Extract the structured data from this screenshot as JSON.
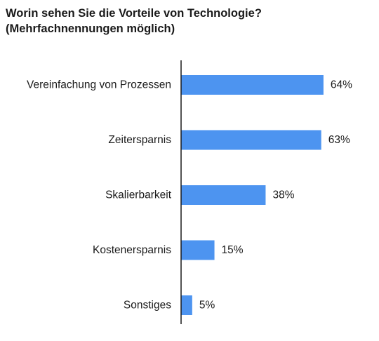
{
  "chart_data": {
    "type": "bar",
    "orientation": "horizontal",
    "title": "Worin sehen Sie die Vorteile von Technologie?",
    "subtitle": "(Mehrfachnennungen möglich)",
    "categories": [
      "Vereinfachung von Prozessen",
      "Zeitersparnis",
      "Skalierbarkeit",
      "Kostenersparnis",
      "Sonstiges"
    ],
    "values": [
      64,
      63,
      38,
      15,
      5
    ],
    "value_labels": [
      "64%",
      "63%",
      "38%",
      "15%",
      "5%"
    ],
    "unit": "%",
    "xlim": [
      0,
      100
    ],
    "grid": false,
    "legend": "none",
    "colors": {
      "bar": "#4d94f0",
      "axis": "#1a1a1a",
      "text": "#1a1a1a"
    }
  }
}
